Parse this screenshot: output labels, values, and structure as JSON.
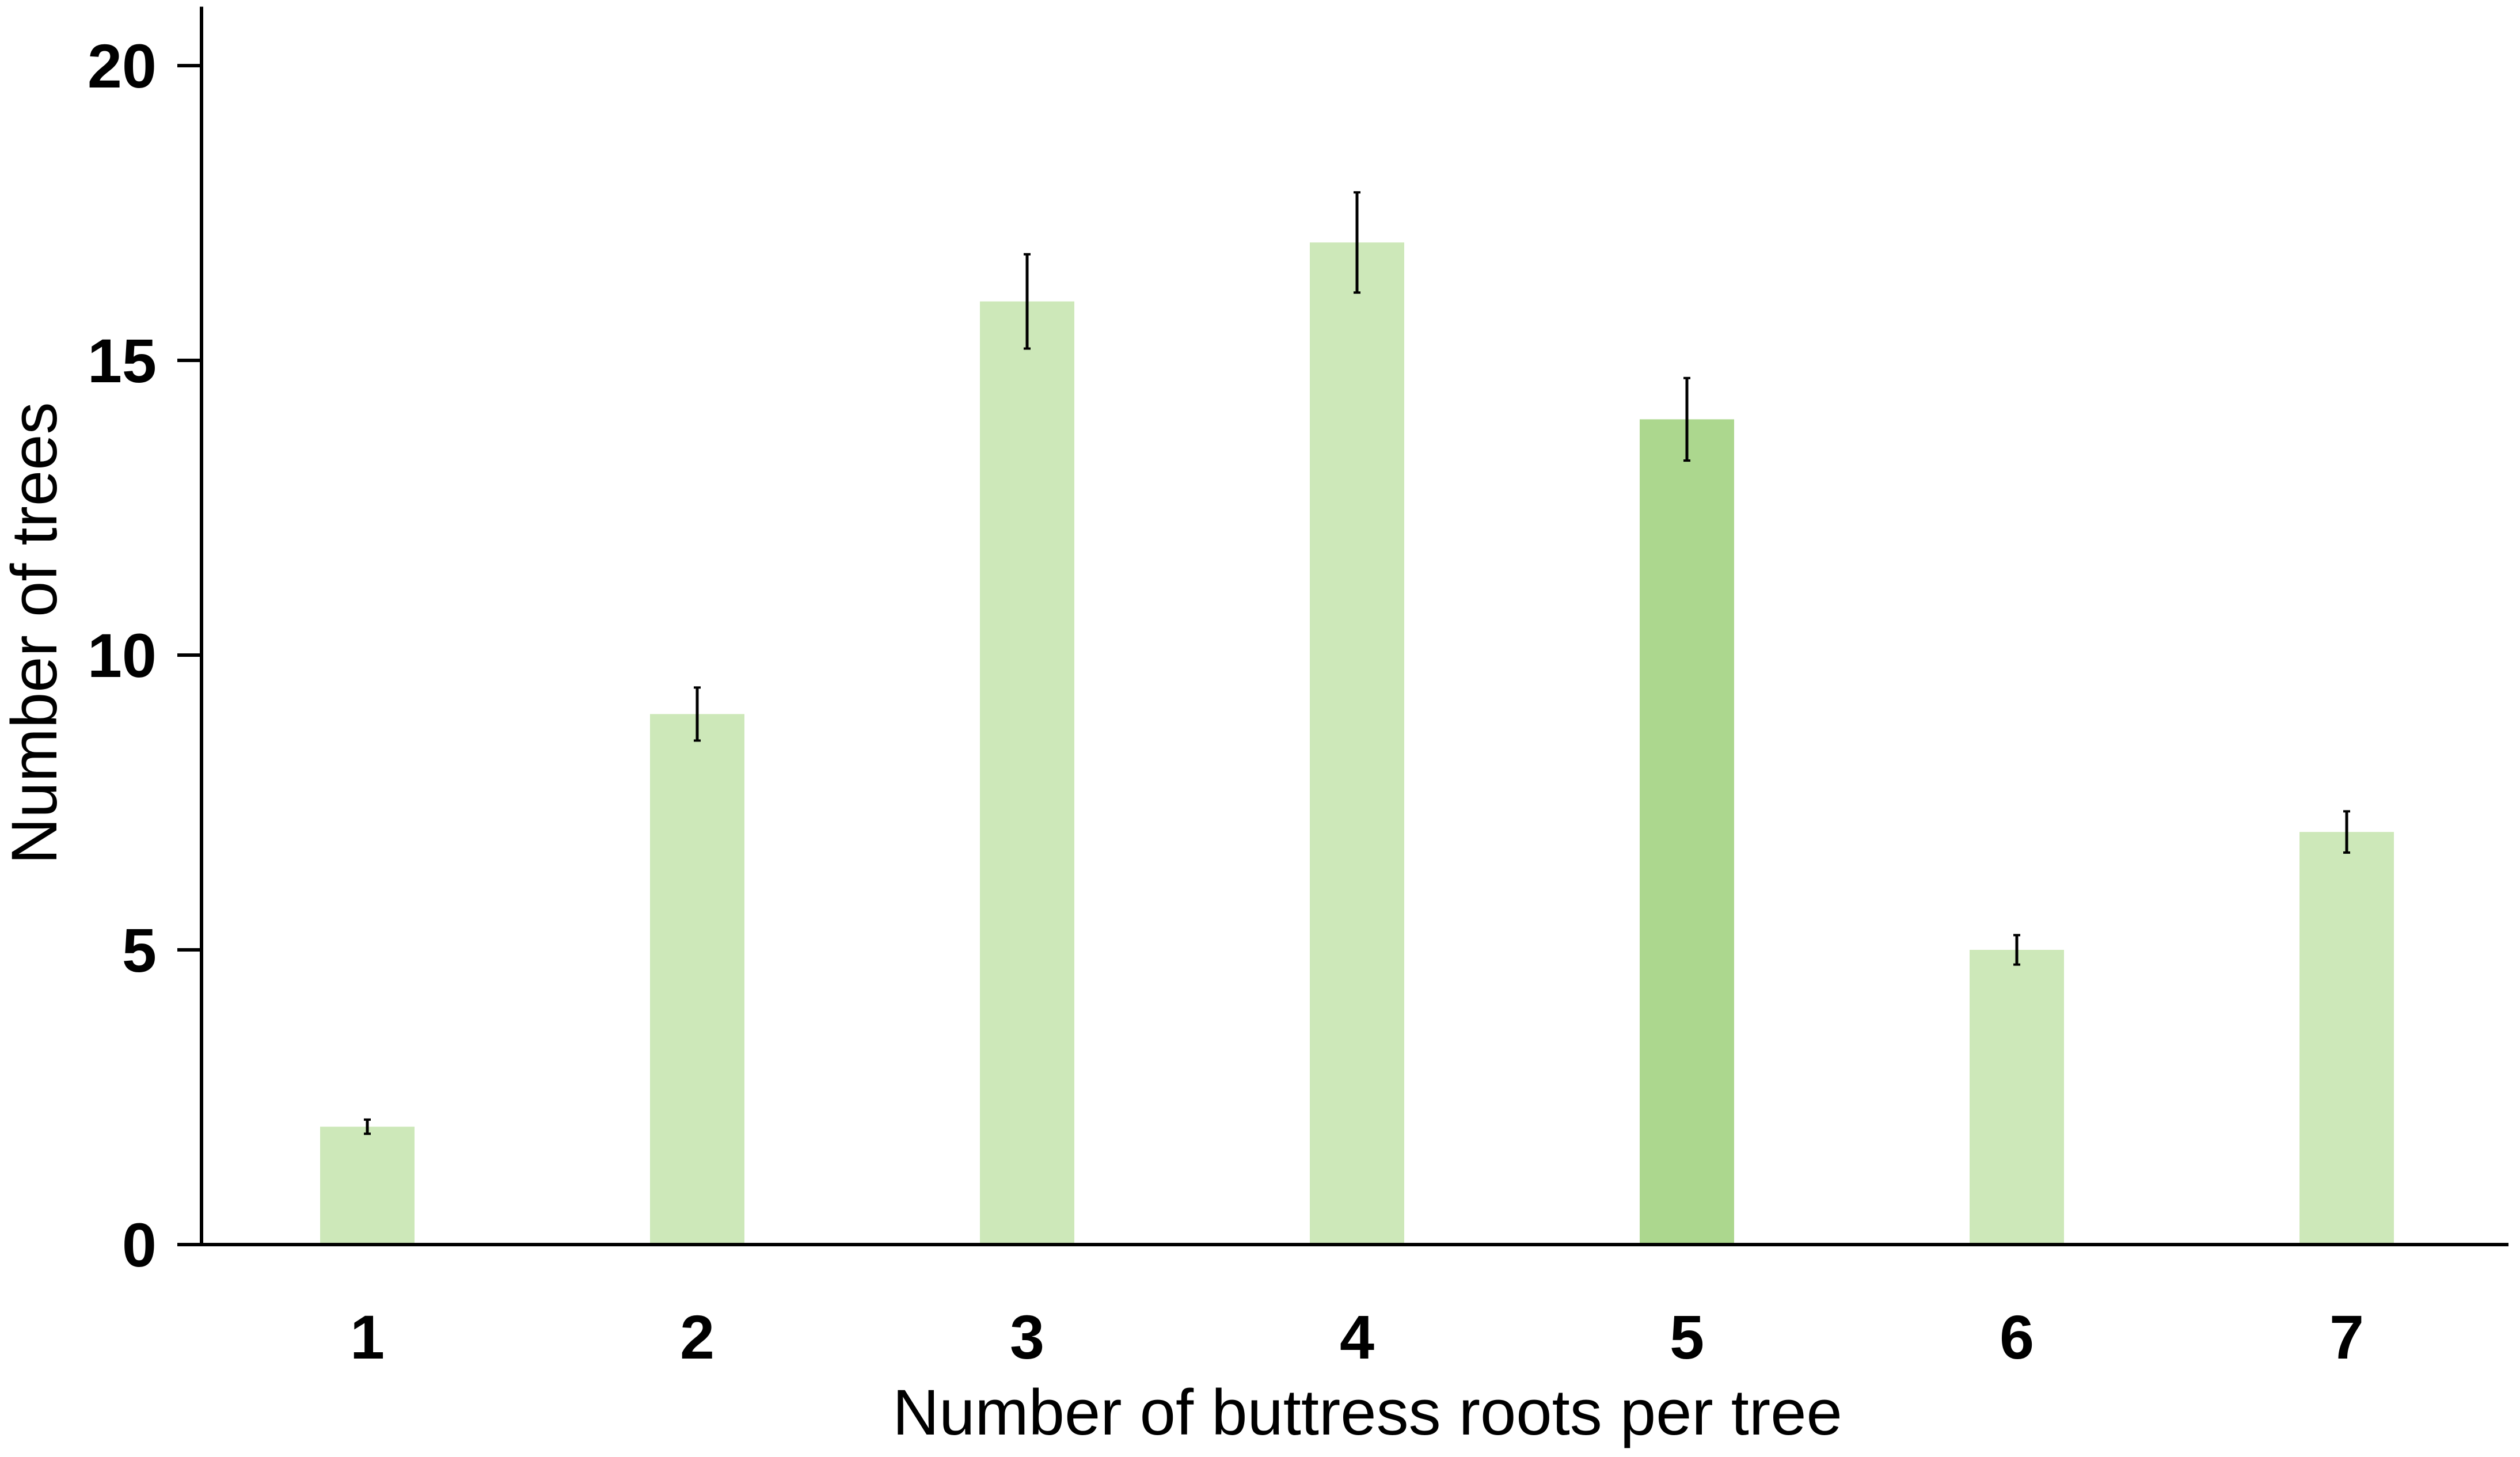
{
  "chart_data": {
    "type": "bar",
    "title": "",
    "xlabel": "Number of buttress roots per tree",
    "ylabel": "Number of trees",
    "categories": [
      "1",
      "2",
      "3",
      "4",
      "5",
      "6",
      "7"
    ],
    "values": [
      2,
      9,
      16,
      17,
      14,
      5,
      7
    ],
    "errors": [
      0.12,
      0.45,
      0.8,
      0.85,
      0.7,
      0.25,
      0.35
    ],
    "highlighted_category": "5",
    "ylim": [
      0,
      21
    ],
    "yticks": [
      0,
      5,
      10,
      15,
      20
    ],
    "ytick_labels": [
      "0",
      "5",
      "10",
      "15",
      "20"
    ],
    "grid": false,
    "legend": "none",
    "colors": {
      "bar": "#cde8b9",
      "bar_highlight": "#acd78e",
      "error_bar": "#000000",
      "axis": "#000000"
    }
  }
}
